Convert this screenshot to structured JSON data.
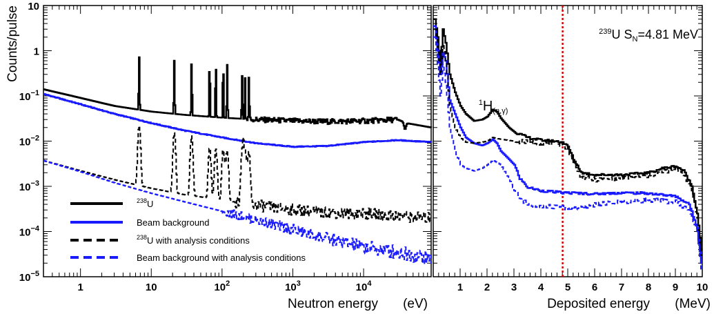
{
  "chart_data": [
    {
      "type": "line",
      "panel": "left",
      "ylabel": "Counts/pulse",
      "y_scale": "log",
      "x_scale": "log",
      "ylim": [
        1e-05,
        10
      ],
      "xlim": [
        0.3,
        90000
      ],
      "x_axis_label": "Neutron energy",
      "x_axis_unit": "(eV)",
      "y_tick_labels": [
        {
          "v": 10,
          "base": "10",
          "exp": ""
        },
        {
          "v": 1,
          "base": "1",
          "exp": ""
        },
        {
          "v": 0.1,
          "base": "10",
          "exp": "−1"
        },
        {
          "v": 0.01,
          "base": "10",
          "exp": "−2"
        },
        {
          "v": 0.001,
          "base": "10",
          "exp": "−3"
        },
        {
          "v": 0.0001,
          "base": "10",
          "exp": "−4"
        },
        {
          "v": 1e-05,
          "base": "10",
          "exp": "−5"
        }
      ],
      "x_tick_labels": [
        {
          "v": 1,
          "base": "1",
          "exp": ""
        },
        {
          "v": 10,
          "base": "10",
          "exp": ""
        },
        {
          "v": 100,
          "base": "10",
          "exp": "2"
        },
        {
          "v": 1000,
          "base": "10",
          "exp": "3"
        },
        {
          "v": 10000,
          "base": "10",
          "exp": "4"
        }
      ],
      "resonances_eV": [
        6.67,
        20.9,
        36.7,
        66.0,
        80.7,
        102.6,
        116.9,
        189.7,
        208.5,
        237.4
      ],
      "series": [
        {
          "name": "²³⁸U",
          "name_base": "U",
          "name_sup": "238",
          "color": "#000000",
          "style": "solid",
          "x": [
            0.3,
            1,
            3,
            10,
            30,
            100,
            300,
            1000,
            3000,
            10000,
            30000,
            40000,
            90000
          ],
          "y": [
            0.14,
            0.09,
            0.06,
            0.045,
            0.038,
            0.033,
            0.03,
            0.028,
            0.027,
            0.028,
            0.03,
            0.025,
            0.02
          ]
        },
        {
          "name": "Beam background",
          "color": "#1a1aff",
          "style": "solid",
          "x": [
            0.3,
            1,
            3,
            10,
            30,
            100,
            300,
            1000,
            3000,
            10000,
            30000,
            90000
          ],
          "y": [
            0.11,
            0.065,
            0.04,
            0.025,
            0.017,
            0.012,
            0.009,
            0.0075,
            0.0078,
            0.0095,
            0.0105,
            0.0095
          ]
        },
        {
          "name": "²³⁸U with analysis conditions",
          "name_base": "U",
          "name_sup": "238",
          "name_rest": " with analysis conditions",
          "color": "#000000",
          "style": "dashed",
          "x": [
            0.3,
            1,
            3,
            10,
            30,
            100,
            300,
            1000,
            3000,
            10000,
            30000,
            90000
          ],
          "y": [
            0.0037,
            0.0022,
            0.0014,
            0.0009,
            0.00065,
            0.0005,
            0.00038,
            0.0003,
            0.00026,
            0.00025,
            0.00022,
            0.0002
          ]
        },
        {
          "name": "Beam background with analysis conditions",
          "color": "#1a1aff",
          "style": "dashed",
          "x": [
            0.3,
            1,
            3,
            10,
            30,
            100,
            300,
            1000,
            3000,
            10000,
            30000,
            90000
          ],
          "y": [
            0.0037,
            0.0021,
            0.0012,
            0.0007,
            0.00045,
            0.00028,
            0.00018,
            0.00011,
            7e-05,
            4.5e-05,
            3.5e-05,
            2.5e-05
          ]
        }
      ]
    },
    {
      "type": "line",
      "panel": "right",
      "y_scale": "log",
      "ylim": [
        1e-05,
        10
      ],
      "xlim": [
        0,
        10
      ],
      "x_axis_label": "Deposited energy",
      "x_axis_unit": "(MeV)",
      "x_tick_labels": [
        1,
        2,
        3,
        4,
        5,
        6,
        7,
        8,
        9,
        10
      ],
      "annotation_title": {
        "prefix_sup": "239",
        "text1": "U S",
        "sub": "N",
        "text2": "=4.81 MeV"
      },
      "annotation_peak": {
        "sup": "1",
        "main": "H",
        "sub": "(n,γ)",
        "x": 2.2
      },
      "threshold_line_MeV": 4.81,
      "threshold_color": "#dd0000",
      "series": [
        {
          "name": "²³⁸U",
          "color": "#000000",
          "style": "solid",
          "x": [
            0.05,
            0.15,
            0.25,
            0.35,
            0.45,
            0.6,
            0.8,
            1.0,
            1.2,
            1.5,
            1.8,
            2.0,
            2.2,
            2.35,
            2.5,
            2.8,
            3.0,
            3.5,
            4.0,
            4.5,
            4.8,
            5.0,
            5.2,
            5.5,
            6.0,
            7.0,
            8.0,
            8.5,
            9.0,
            9.3,
            9.6,
            9.8,
            9.95
          ],
          "y": [
            5.0,
            2.0,
            0.5,
            3.0,
            1.5,
            0.3,
            0.12,
            0.06,
            0.04,
            0.028,
            0.03,
            0.035,
            0.05,
            0.045,
            0.032,
            0.02,
            0.016,
            0.012,
            0.0105,
            0.01,
            0.0095,
            0.0075,
            0.004,
            0.002,
            0.0018,
            0.0018,
            0.002,
            0.0025,
            0.0028,
            0.0022,
            0.001,
            0.00025,
            4e-05
          ]
        },
        {
          "name": "Beam background",
          "color": "#1a1aff",
          "style": "solid",
          "x": [
            0.05,
            0.15,
            0.25,
            0.35,
            0.45,
            0.6,
            0.8,
            1.0,
            1.2,
            1.5,
            1.8,
            2.0,
            2.2,
            2.35,
            2.5,
            2.8,
            3.0,
            3.2,
            3.5,
            4.0,
            4.5,
            4.8,
            5.0,
            5.5,
            6.0,
            7.0,
            8.0,
            9.0,
            9.5,
            9.8,
            9.95
          ],
          "y": [
            3.5,
            1.0,
            0.3,
            0.9,
            0.6,
            0.08,
            0.04,
            0.02,
            0.012,
            0.009,
            0.008,
            0.009,
            0.011,
            0.009,
            0.006,
            0.004,
            0.003,
            0.0015,
            0.00095,
            0.0008,
            0.00075,
            0.00072,
            0.00072,
            0.0007,
            0.00068,
            0.00072,
            0.0007,
            0.0006,
            0.0004,
            0.00012,
            2e-05
          ]
        },
        {
          "name": "²³⁸U with analysis conditions",
          "color": "#000000",
          "style": "dashed",
          "x": [
            0.05,
            0.15,
            0.25,
            0.35,
            0.45,
            0.6,
            0.8,
            1.0,
            1.2,
            1.5,
            1.8,
            2.0,
            2.2,
            2.5,
            3.0,
            3.5,
            4.0,
            4.5,
            4.8,
            5.0,
            5.2,
            5.5,
            6.0,
            7.0,
            8.0,
            8.5,
            9.0,
            9.3,
            9.6,
            9.8,
            9.95
          ],
          "y": [
            3.0,
            1.2,
            0.3,
            1.5,
            0.6,
            0.06,
            0.02,
            0.012,
            0.0095,
            0.009,
            0.0095,
            0.01,
            0.012,
            0.011,
            0.01,
            0.0095,
            0.0092,
            0.009,
            0.0085,
            0.0065,
            0.0032,
            0.0016,
            0.0014,
            0.0015,
            0.0017,
            0.0021,
            0.0024,
            0.0019,
            0.0008,
            0.0002,
            3e-05
          ]
        },
        {
          "name": "Beam background with analysis conditions",
          "color": "#1a1aff",
          "style": "dashed",
          "x": [
            0.05,
            0.15,
            0.25,
            0.35,
            0.45,
            0.6,
            0.8,
            1.0,
            1.2,
            1.5,
            1.8,
            2.0,
            2.2,
            2.5,
            2.8,
            3.0,
            3.2,
            3.5,
            4.0,
            4.5,
            4.8,
            5.0,
            5.5,
            6.0,
            7.0,
            8.0,
            9.0,
            9.5,
            9.8,
            9.95
          ],
          "y": [
            2.0,
            0.5,
            0.1,
            0.5,
            0.2,
            0.02,
            0.006,
            0.003,
            0.0025,
            0.0022,
            0.0025,
            0.003,
            0.0038,
            0.003,
            0.0015,
            0.0008,
            0.00055,
            0.0004,
            0.00037,
            0.00035,
            0.00034,
            0.00033,
            0.00033,
            0.0004,
            0.00045,
            0.0005,
            0.00045,
            0.0003,
            9e-05,
            1.5e-05
          ]
        }
      ]
    }
  ]
}
